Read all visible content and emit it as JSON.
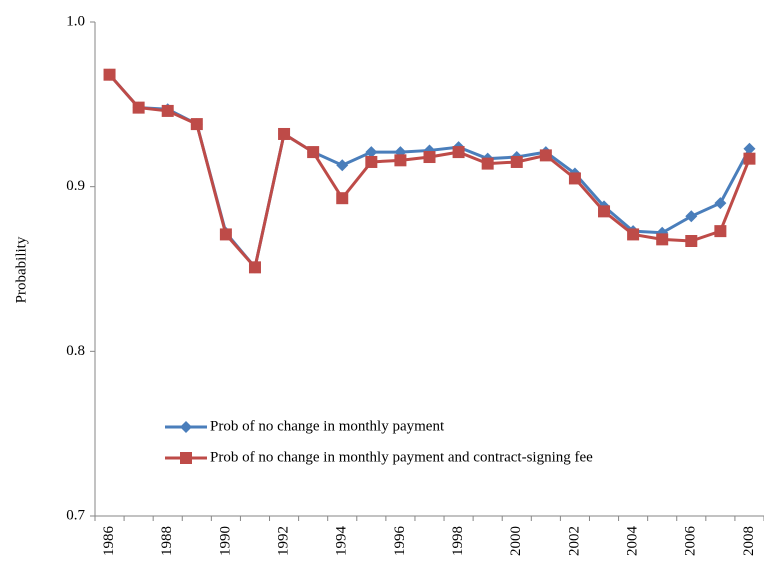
{
  "chart_data": {
    "type": "line",
    "y_label": "Probability",
    "categories": [
      "1986",
      null,
      "1988",
      null,
      "1990",
      null,
      "1992",
      null,
      "1994",
      null,
      "1996",
      null,
      "1998",
      null,
      "2000",
      null,
      "2002",
      null,
      "2004",
      null,
      "2006",
      null,
      "2008"
    ],
    "series": [
      {
        "name": "Prob of no change in monthly payment",
        "color": "#4a7ebb",
        "marker": "diamond",
        "values": [
          0.968,
          0.948,
          0.947,
          0.938,
          0.872,
          0.851,
          0.932,
          0.921,
          0.913,
          0.921,
          0.921,
          0.922,
          0.924,
          0.917,
          0.918,
          0.921,
          0.908,
          0.888,
          0.873,
          0.872,
          0.882,
          0.89,
          0.923
        ]
      },
      {
        "name": "Prob of no change in monthly payment and contract-signing fee",
        "color": "#be4b48",
        "marker": "square",
        "values": [
          0.968,
          0.948,
          0.946,
          0.938,
          0.871,
          0.851,
          0.932,
          0.921,
          0.893,
          0.915,
          0.916,
          0.918,
          0.921,
          0.914,
          0.915,
          0.919,
          0.905,
          0.885,
          0.871,
          0.868,
          0.867,
          0.873,
          0.917
        ]
      }
    ],
    "ylim": [
      0.7,
      1.0
    ],
    "yticks": [
      {
        "value": 0.7,
        "label": "0.7"
      },
      {
        "value": 0.8,
        "label": "0.8"
      },
      {
        "value": 0.9,
        "label": "0.9"
      },
      {
        "value": 1.0,
        "label": "1.0"
      }
    ],
    "grid": false,
    "legend": "lower-left"
  }
}
